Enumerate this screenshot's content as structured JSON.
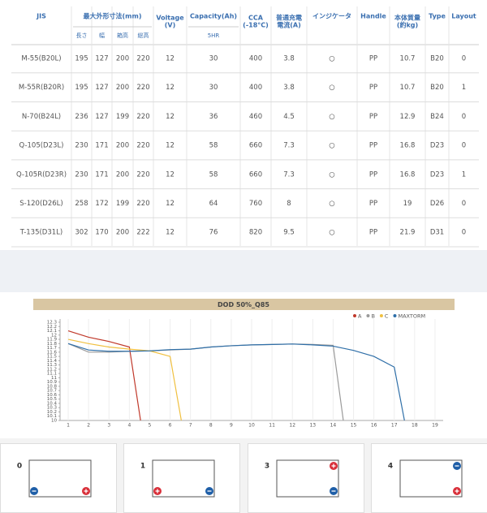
{
  "table": {
    "header": [
      {
        "text": [
          "JIS"
        ]
      },
      {
        "text": [
          "最大外形寸法(mm)"
        ],
        "sub": [
          "長さ",
          "幅",
          "箱高",
          "総高"
        ]
      },
      {
        "text": [
          "Voltage",
          "(V)"
        ]
      },
      {
        "text": [
          "Capacity(Ah)"
        ],
        "sub": [
          "5HR"
        ]
      },
      {
        "text": [
          "CCA",
          "(-18°C)"
        ]
      },
      {
        "text": [
          "普通充電",
          "電流(A)"
        ]
      },
      {
        "text": [
          "インジケータ"
        ]
      },
      {
        "text": [
          "Handle"
        ]
      },
      {
        "text": [
          "本体質量",
          "(約kg)"
        ]
      },
      {
        "text": [
          "Type"
        ]
      },
      {
        "text": [
          "Layout"
        ]
      }
    ],
    "rows": [
      [
        "M-55(B20L)",
        195,
        127,
        200,
        220,
        12,
        30,
        400,
        3.8,
        "○",
        "PP",
        10.7,
        "B20",
        0
      ],
      [
        "M-55R(B20R)",
        195,
        127,
        200,
        220,
        12,
        30,
        400,
        3.8,
        "○",
        "PP",
        10.7,
        "B20",
        1
      ],
      [
        "N-70(B24L)",
        236,
        127,
        199,
        220,
        12,
        36,
        460,
        4.5,
        "○",
        "PP",
        12.9,
        "B24",
        0
      ],
      [
        "Q-105(D23L)",
        230,
        171,
        200,
        220,
        12,
        58,
        660,
        7.3,
        "○",
        "PP",
        16.8,
        "D23",
        0
      ],
      [
        "Q-105R(D23R)",
        230,
        171,
        200,
        220,
        12,
        58,
        660,
        7.3,
        "○",
        "PP",
        16.8,
        "D23",
        1
      ],
      [
        "S-120(D26L)",
        258,
        172,
        199,
        220,
        12,
        64,
        760,
        8,
        "○",
        "PP",
        19,
        "D26",
        0
      ],
      [
        "T-135(D31L)",
        302,
        170,
        200,
        222,
        12,
        76,
        820,
        9.5,
        "○",
        "PP",
        21.9,
        "D31",
        0
      ]
    ]
  },
  "chart_data": {
    "type": "line",
    "title": "DOD 50%_Q85",
    "xlim": [
      0.6,
      19.4
    ],
    "xticks": [
      1,
      2,
      3,
      4,
      5,
      6,
      7,
      8,
      9,
      10,
      11,
      12,
      13,
      14,
      15,
      16,
      17,
      18,
      19
    ],
    "ylim": [
      10,
      12.3
    ],
    "yticks": [
      12.3,
      12.2,
      12.1,
      12,
      11.9,
      11.8,
      11.7,
      11.6,
      11.5,
      11.4,
      11.3,
      11.2,
      11.1,
      11,
      10.9,
      10.8,
      10.7,
      10.6,
      10.5,
      10.4,
      10.3,
      10.2,
      10.1,
      10
    ],
    "grid": true,
    "legend": "top-right",
    "series": [
      {
        "name": "A",
        "color": "#c0392b",
        "x": [
          1,
          2,
          3,
          4,
          4.55
        ],
        "values": [
          12.1,
          11.95,
          11.85,
          11.72,
          10
        ]
      },
      {
        "name": "B",
        "color": "#9a9a9a",
        "x": [
          1,
          2,
          3,
          4,
          5,
          6,
          7,
          8,
          9,
          10,
          11,
          12,
          13,
          14,
          14.5
        ],
        "values": [
          11.8,
          11.6,
          11.6,
          11.62,
          11.63,
          11.65,
          11.67,
          11.72,
          11.75,
          11.77,
          11.78,
          11.79,
          11.78,
          11.76,
          10
        ]
      },
      {
        "name": "C",
        "color": "#f0c040",
        "x": [
          1,
          2,
          3,
          4,
          5,
          6,
          6.55
        ],
        "values": [
          11.9,
          11.8,
          11.72,
          11.67,
          11.63,
          11.5,
          10
        ]
      },
      {
        "name": "MAXTORM",
        "color": "#2f6fa8",
        "x": [
          1,
          2,
          3,
          4,
          5,
          6,
          7,
          8,
          9,
          10,
          11,
          12,
          13,
          14,
          15,
          16,
          17,
          17.5
        ],
        "values": [
          11.8,
          11.65,
          11.62,
          11.62,
          11.63,
          11.66,
          11.67,
          11.72,
          11.75,
          11.77,
          11.78,
          11.79,
          11.77,
          11.74,
          11.64,
          11.5,
          11.25,
          10
        ]
      }
    ]
  },
  "layouts": [
    "0",
    "1",
    "3",
    "4"
  ]
}
